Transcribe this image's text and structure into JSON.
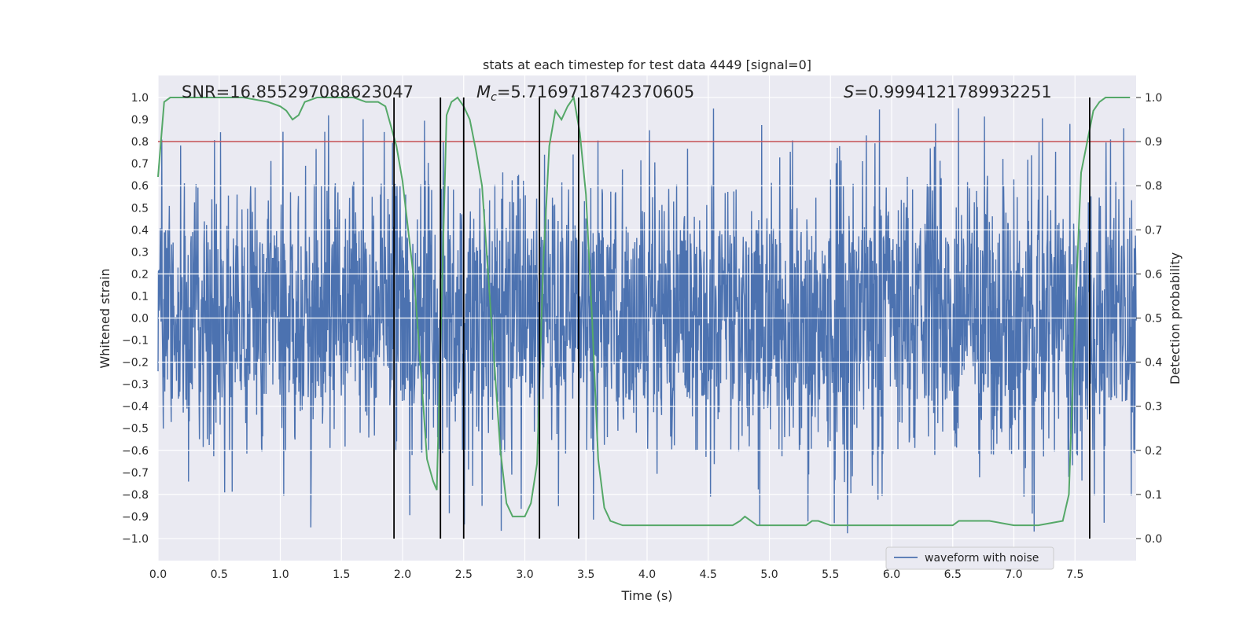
{
  "chart_data": {
    "type": "line",
    "title": "stats at each timestep for test data 4449 [signal=0]",
    "xlabel": "Time (s)",
    "ylabel_left": "Whitened strain",
    "ylabel_right": "Detection probability",
    "xlim": [
      0.0,
      8.0
    ],
    "ylim_left": [
      -1.1,
      1.1
    ],
    "ylim_right": [
      -0.05,
      1.05
    ],
    "xticks": [
      "0.0",
      "0.5",
      "1.0",
      "1.5",
      "2.0",
      "2.5",
      "3.0",
      "3.5",
      "4.0",
      "4.5",
      "5.0",
      "5.5",
      "6.0",
      "6.5",
      "7.0",
      "7.5"
    ],
    "yticks_left": [
      "1.0",
      "0.9",
      "0.8",
      "0.7",
      "0.6",
      "0.5",
      "0.4",
      "0.3",
      "0.2",
      "0.1",
      "0.0",
      "−0.1",
      "−0.2",
      "−0.3",
      "−0.4",
      "−0.5",
      "−0.6",
      "−0.7",
      "−0.8",
      "−0.9",
      "−1.0"
    ],
    "yticks_right": [
      "1.0",
      "0.9",
      "0.8",
      "0.7",
      "0.6",
      "0.5",
      "0.4",
      "0.3",
      "0.2",
      "0.1",
      "0.0"
    ],
    "grid": true,
    "legend": {
      "placement": "lower-center",
      "entries": [
        "waveform with noise"
      ]
    },
    "annotations": {
      "snr": "SNR=16.855297088623047",
      "mc_symbol": "M",
      "mc_sub": "c",
      "mc_value": "=5.7169718742370605",
      "s_symbol": "S",
      "s_value": "=0.9994121789932251"
    },
    "threshold": 0.9,
    "vertical_lines": [
      1.93,
      2.31,
      2.5,
      3.12,
      3.44,
      7.62
    ],
    "series": [
      {
        "name": "waveform with noise",
        "color": "#4c72b0",
        "kind": "noise",
        "core_amplitude": 0.38,
        "peak_range": [
          -0.98,
          0.97
        ]
      },
      {
        "color": "#55a868",
        "kind": "probability",
        "x": [
          0.0,
          0.05,
          0.1,
          0.15,
          0.2,
          0.3,
          0.5,
          0.7,
          0.9,
          1.0,
          1.05,
          1.1,
          1.15,
          1.2,
          1.3,
          1.4,
          1.6,
          1.7,
          1.8,
          1.86,
          1.95,
          2.0,
          2.1,
          2.15,
          2.2,
          2.25,
          2.28,
          2.32,
          2.36,
          2.4,
          2.45,
          2.5,
          2.55,
          2.6,
          2.65,
          2.7,
          2.75,
          2.8,
          2.85,
          2.9,
          2.95,
          3.0,
          3.05,
          3.1,
          3.15,
          3.2,
          3.25,
          3.3,
          3.35,
          3.4,
          3.45,
          3.5,
          3.55,
          3.6,
          3.65,
          3.7,
          3.8,
          3.9,
          4.0,
          4.1,
          4.2,
          4.4,
          4.6,
          4.7,
          4.76,
          4.8,
          4.85,
          4.9,
          5.0,
          5.1,
          5.2,
          5.3,
          5.35,
          5.4,
          5.5,
          5.7,
          6.0,
          6.3,
          6.5,
          6.55,
          6.6,
          6.7,
          6.8,
          7.0,
          7.2,
          7.4,
          7.45,
          7.5,
          7.55,
          7.6,
          7.65,
          7.7,
          7.75,
          7.8,
          7.9,
          7.95
        ],
        "y": [
          0.82,
          0.99,
          1.0,
          1.0,
          1.0,
          1.0,
          1.0,
          1.0,
          0.99,
          0.98,
          0.97,
          0.95,
          0.96,
          0.99,
          1.0,
          1.0,
          1.0,
          0.99,
          0.99,
          0.98,
          0.89,
          0.81,
          0.57,
          0.38,
          0.18,
          0.13,
          0.11,
          0.54,
          0.96,
          0.99,
          1.0,
          0.98,
          0.95,
          0.88,
          0.8,
          0.6,
          0.4,
          0.2,
          0.08,
          0.05,
          0.05,
          0.05,
          0.08,
          0.17,
          0.62,
          0.89,
          0.97,
          0.95,
          0.98,
          1.0,
          0.92,
          0.78,
          0.5,
          0.18,
          0.07,
          0.04,
          0.03,
          0.03,
          0.03,
          0.03,
          0.03,
          0.03,
          0.03,
          0.03,
          0.04,
          0.05,
          0.04,
          0.03,
          0.03,
          0.03,
          0.03,
          0.03,
          0.04,
          0.04,
          0.03,
          0.03,
          0.03,
          0.03,
          0.03,
          0.04,
          0.04,
          0.04,
          0.04,
          0.03,
          0.03,
          0.04,
          0.1,
          0.5,
          0.83,
          0.9,
          0.97,
          0.99,
          1.0,
          1.0,
          1.0,
          1.0
        ]
      }
    ]
  }
}
